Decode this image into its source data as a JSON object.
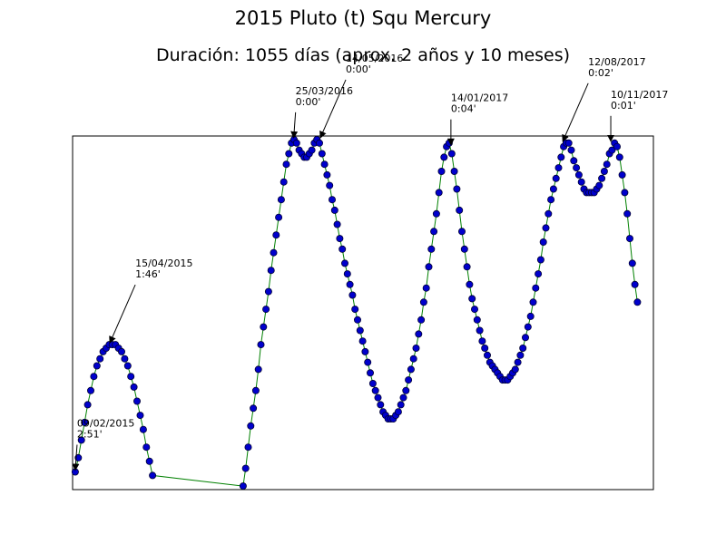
{
  "figure": {
    "title": "2015 Pluto (t) Squ Mercury",
    "subtitle": "Duración: 1055 días (aprox. 2 años y 10 meses)"
  },
  "chart_data": {
    "type": "line",
    "title": "2015 Pluto (t) Squ Mercury",
    "subtitle": "Duración: 1055 días (aprox. 2 años y 10 meses)",
    "xlabel": "",
    "ylabel": "",
    "axes_visible": false,
    "grid": false,
    "colors": {
      "line": "#008000",
      "marker_face": "#0000cc",
      "marker_edge": "#000033"
    },
    "annotations": [
      {
        "date": "09/02/2015",
        "orb": "2:51'",
        "x": 0,
        "y": 0.05
      },
      {
        "date": "15/04/2015",
        "orb": "1:46'",
        "x": 65,
        "y": 0.41
      },
      {
        "date": "25/03/2016",
        "orb": "0:00'",
        "x": 410,
        "y": 0.99
      },
      {
        "date": "14/05/2016",
        "orb": "0:00'",
        "x": 460,
        "y": 0.99
      },
      {
        "date": "14/01/2017",
        "orb": "0:04'",
        "x": 705,
        "y": 0.97
      },
      {
        "date": "12/08/2017",
        "orb": "0:02'",
        "x": 915,
        "y": 0.98
      },
      {
        "date": "10/11/2017",
        "orb": "0:01'",
        "x": 1005,
        "y": 0.98
      }
    ],
    "segments": [
      {
        "x_start": 0,
        "x_end": 145,
        "y": [
          0.05,
          0.09,
          0.14,
          0.19,
          0.24,
          0.28,
          0.32,
          0.35,
          0.37,
          0.39,
          0.4,
          0.41,
          0.41,
          0.41,
          0.4,
          0.39,
          0.37,
          0.35,
          0.32,
          0.29,
          0.25,
          0.21,
          0.17,
          0.12,
          0.08,
          0.04
        ]
      },
      {
        "x_start": 315,
        "x_end": 1055,
        "y": [
          0.01,
          0.06,
          0.12,
          0.18,
          0.23,
          0.28,
          0.34,
          0.41,
          0.46,
          0.51,
          0.56,
          0.62,
          0.67,
          0.72,
          0.77,
          0.82,
          0.87,
          0.92,
          0.95,
          0.98,
          0.99,
          0.98,
          0.96,
          0.95,
          0.94,
          0.94,
          0.95,
          0.96,
          0.98,
          0.99,
          0.98,
          0.95,
          0.92,
          0.89,
          0.86,
          0.82,
          0.79,
          0.75,
          0.71,
          0.68,
          0.64,
          0.61,
          0.58,
          0.55,
          0.51,
          0.48,
          0.45,
          0.42,
          0.39,
          0.36,
          0.33,
          0.3,
          0.28,
          0.26,
          0.24,
          0.22,
          0.21,
          0.2,
          0.2,
          0.2,
          0.21,
          0.22,
          0.24,
          0.26,
          0.28,
          0.31,
          0.34,
          0.37,
          0.4,
          0.44,
          0.48,
          0.53,
          0.57,
          0.63,
          0.68,
          0.73,
          0.78,
          0.84,
          0.9,
          0.94,
          0.97,
          0.98,
          0.95,
          0.9,
          0.85,
          0.79,
          0.73,
          0.68,
          0.63,
          0.58,
          0.54,
          0.51,
          0.48,
          0.45,
          0.42,
          0.4,
          0.38,
          0.36,
          0.35,
          0.34,
          0.33,
          0.32,
          0.31,
          0.31,
          0.31,
          0.32,
          0.33,
          0.34,
          0.36,
          0.38,
          0.4,
          0.43,
          0.46,
          0.49,
          0.53,
          0.57,
          0.61,
          0.65,
          0.7,
          0.74,
          0.78,
          0.82,
          0.85,
          0.88,
          0.91,
          0.94,
          0.97,
          0.98,
          0.98,
          0.96,
          0.93,
          0.91,
          0.89,
          0.87,
          0.85,
          0.84,
          0.84,
          0.84,
          0.84,
          0.85,
          0.86,
          0.88,
          0.9,
          0.92,
          0.95,
          0.96,
          0.98,
          0.97,
          0.94,
          0.89,
          0.84,
          0.78,
          0.71,
          0.64,
          0.58,
          0.53
        ]
      }
    ],
    "xlim": [
      -5,
      1085
    ],
    "ylim": [
      0.0,
      1.0
    ]
  }
}
